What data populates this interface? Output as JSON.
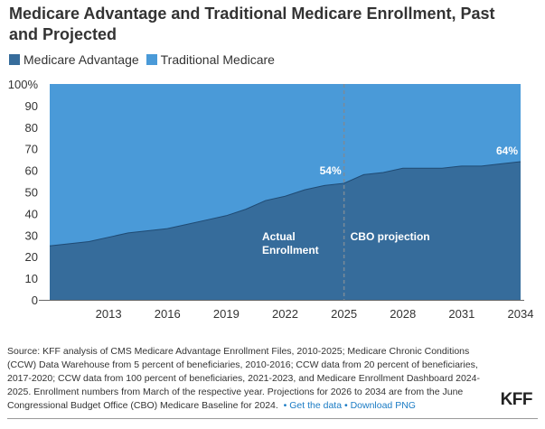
{
  "chart_data": {
    "type": "area",
    "title": "Medicare Advantage and Traditional Medicare Enrollment, Past and Projected",
    "stacked": true,
    "percent": true,
    "x": [
      2010,
      2011,
      2012,
      2013,
      2014,
      2015,
      2016,
      2017,
      2018,
      2019,
      2020,
      2021,
      2022,
      2023,
      2024,
      2025,
      2026,
      2027,
      2028,
      2029,
      2030,
      2031,
      2032,
      2033,
      2034
    ],
    "series": [
      {
        "name": "Medicare Advantage",
        "color": "#366c9b",
        "values": [
          25,
          26,
          27,
          29,
          31,
          32,
          33,
          35,
          37,
          39,
          42,
          46,
          48,
          51,
          53,
          54,
          58,
          59,
          61,
          61,
          61,
          62,
          62,
          63,
          64
        ]
      },
      {
        "name": "Traditional Medicare",
        "color": "#4a9ad8",
        "values": [
          75,
          74,
          73,
          71,
          69,
          68,
          67,
          65,
          63,
          61,
          58,
          54,
          52,
          49,
          47,
          46,
          42,
          41,
          39,
          39,
          39,
          38,
          38,
          37,
          36
        ]
      }
    ],
    "xticks": [
      "2013",
      "2016",
      "2019",
      "2022",
      "2025",
      "2028",
      "2031",
      "2034"
    ],
    "yticks": [
      "0",
      "10",
      "20",
      "30",
      "40",
      "50",
      "60",
      "70",
      "80",
      "90",
      "100%"
    ],
    "ylim": [
      0,
      100
    ],
    "xlim": [
      2010,
      2034
    ],
    "grid": false,
    "legend": "top-left",
    "annotations": {
      "label_2025": "54%",
      "label_2034": "64%",
      "actual_line1": "Actual",
      "actual_line2": "Enrollment",
      "projection": "CBO projection",
      "divider_year": 2025
    }
  },
  "footer": {
    "source": "Source: KFF analysis of CMS Medicare Advantage Enrollment Files, 2010-2025; Medicare Chronic Conditions (CCW) Data Warehouse from 5 percent of beneficiaries, 2010-2016; CCW data from 20 percent of beneficiaries, 2017-2020; CCW data from 100 percent of beneficiaries, 2021-2023, and Medicare Enrollment Dashboard 2024-2025. Enrollment numbers from March of the respective year. Projections for 2026 to 2034 are from the June Congressional Budget Office (CBO) Medicare Baseline for 2024.",
    "get_data": "Get the data",
    "download": "Download PNG",
    "logo": "KFF"
  }
}
